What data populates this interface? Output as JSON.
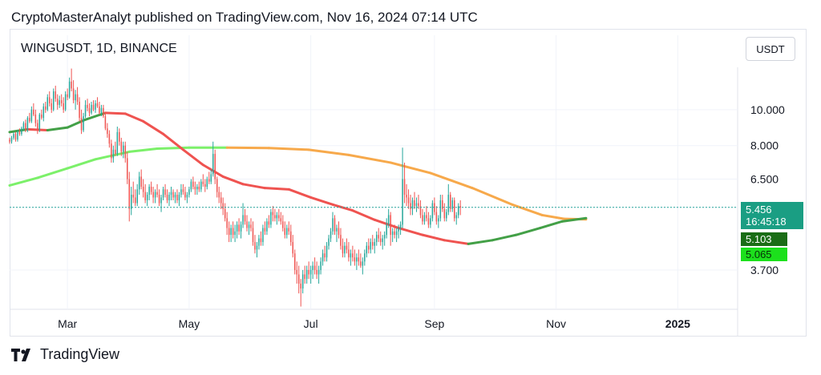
{
  "header": {
    "publish_line": "CryptoMasterAnalyt published on TradingView.com, Nov 16, 2024 07:14 UTC"
  },
  "symbol": {
    "label": "WINGUSDT, 1D, BINANCE"
  },
  "currency": {
    "label": "USDT"
  },
  "footer": {
    "brand": "TradingView"
  },
  "tags": {
    "last_price": "5.456",
    "countdown": "16:45:18",
    "ma_fast": "5.103",
    "ma_slow": "5.065"
  },
  "colors": {
    "up": "#26a69a",
    "down": "#ef5350",
    "ma_fast_above": "#43a047",
    "ma_fast_below": "#ef5350",
    "ma_slow_above": "#f7a94b",
    "ma_slow_below": "#7cf06a",
    "price_line": "#26a69a"
  },
  "chart_data": {
    "type": "candlestick",
    "log_scale": true,
    "y_ticks": [
      "10.000",
      "8.000",
      "6.500",
      "5.456",
      "3.700"
    ],
    "x_ticks": [
      "Mar",
      "May",
      "Jul",
      "Sep",
      "Nov",
      "2025"
    ],
    "x_range": [
      "2024-02-01",
      "2025-01-31"
    ],
    "y_range": [
      2.9,
      13.0
    ],
    "last_price": 5.456,
    "candles_start": "2024-02-01",
    "candles": [
      [
        8.3,
        8.4,
        8.1,
        8.2
      ],
      [
        8.2,
        8.5,
        8.1,
        8.4
      ],
      [
        8.4,
        8.7,
        8.3,
        8.6
      ],
      [
        8.6,
        8.7,
        8.2,
        8.3
      ],
      [
        8.3,
        8.8,
        8.2,
        8.7
      ],
      [
        8.7,
        8.9,
        8.5,
        8.6
      ],
      [
        8.6,
        9.0,
        8.5,
        8.9
      ],
      [
        8.9,
        9.3,
        8.8,
        9.2
      ],
      [
        9.2,
        9.4,
        8.7,
        8.8
      ],
      [
        8.8,
        9.6,
        8.7,
        9.5
      ],
      [
        9.5,
        9.8,
        9.2,
        9.3
      ],
      [
        9.3,
        10.2,
        9.2,
        10.0
      ],
      [
        10.0,
        10.4,
        9.6,
        9.7
      ],
      [
        9.7,
        10.0,
        9.0,
        9.2
      ],
      [
        9.2,
        9.4,
        8.6,
        8.8
      ],
      [
        8.8,
        9.8,
        8.7,
        9.7
      ],
      [
        9.7,
        10.0,
        9.4,
        9.5
      ],
      [
        9.5,
        10.4,
        9.3,
        10.2
      ],
      [
        10.2,
        10.5,
        9.8,
        10.0
      ],
      [
        10.0,
        11.0,
        9.9,
        10.8
      ],
      [
        10.8,
        11.2,
        10.2,
        10.4
      ],
      [
        10.4,
        10.7,
        9.8,
        10.0
      ],
      [
        10.0,
        11.4,
        9.9,
        11.2
      ],
      [
        11.2,
        11.6,
        10.5,
        10.7
      ],
      [
        10.7,
        11.0,
        10.0,
        10.3
      ],
      [
        10.3,
        10.9,
        10.1,
        10.6
      ],
      [
        10.6,
        11.0,
        10.2,
        10.4
      ],
      [
        10.4,
        10.8,
        9.8,
        10.0
      ],
      [
        10.0,
        11.2,
        9.9,
        11.0
      ],
      [
        11.0,
        11.4,
        10.6,
        10.8
      ],
      [
        10.8,
        12.2,
        10.7,
        11.9
      ],
      [
        11.9,
        12.9,
        11.2,
        11.4
      ],
      [
        11.4,
        12.0,
        10.4,
        10.6
      ],
      [
        10.6,
        11.3,
        10.0,
        11.0
      ],
      [
        11.0,
        11.5,
        10.3,
        10.5
      ],
      [
        10.5,
        10.8,
        9.3,
        9.5
      ],
      [
        9.5,
        10.0,
        8.6,
        8.8
      ],
      [
        8.8,
        9.8,
        8.7,
        9.6
      ],
      [
        9.6,
        10.6,
        9.5,
        10.3
      ],
      [
        10.3,
        10.7,
        9.9,
        10.1
      ],
      [
        10.1,
        10.4,
        9.6,
        9.8
      ],
      [
        9.8,
        10.5,
        9.7,
        10.3
      ],
      [
        10.3,
        10.6,
        9.9,
        10.0
      ],
      [
        10.0,
        10.6,
        9.8,
        10.4
      ],
      [
        10.4,
        10.8,
        10.1,
        10.2
      ],
      [
        10.2,
        10.5,
        9.7,
        9.8
      ],
      [
        9.8,
        10.3,
        9.6,
        10.1
      ],
      [
        10.1,
        10.3,
        9.5,
        9.6
      ],
      [
        9.6,
        9.8,
        8.8,
        8.9
      ],
      [
        8.9,
        9.2,
        8.4,
        8.6
      ],
      [
        8.6,
        8.8,
        7.9,
        8.1
      ],
      [
        8.1,
        8.3,
        7.2,
        7.4
      ],
      [
        7.4,
        8.0,
        7.2,
        7.8
      ],
      [
        7.8,
        8.2,
        7.5,
        7.6
      ],
      [
        7.6,
        9.0,
        7.5,
        8.7
      ],
      [
        8.7,
        8.9,
        8.0,
        8.2
      ],
      [
        8.2,
        8.4,
        7.5,
        7.7
      ],
      [
        7.7,
        8.2,
        7.4,
        8.0
      ],
      [
        8.0,
        8.2,
        7.2,
        7.4
      ],
      [
        7.4,
        7.7,
        6.3,
        6.5
      ],
      [
        6.5,
        6.8,
        5.0,
        5.4
      ],
      [
        5.4,
        6.2,
        5.2,
        5.9
      ],
      [
        5.9,
        6.4,
        5.6,
        5.8
      ],
      [
        5.8,
        6.1,
        5.5,
        5.6
      ],
      [
        5.6,
        6.3,
        5.5,
        6.1
      ],
      [
        6.1,
        6.8,
        5.9,
        6.6
      ],
      [
        6.6,
        6.9,
        6.1,
        6.2
      ],
      [
        6.2,
        6.5,
        5.8,
        6.0
      ],
      [
        6.0,
        6.3,
        5.6,
        5.7
      ],
      [
        5.7,
        6.0,
        5.5,
        5.9
      ],
      [
        5.9,
        6.3,
        5.7,
        6.2
      ],
      [
        6.2,
        6.4,
        5.9,
        6.0
      ],
      [
        6.0,
        6.2,
        5.6,
        5.8
      ],
      [
        5.8,
        6.1,
        5.6,
        6.0
      ],
      [
        6.0,
        6.3,
        5.8,
        5.9
      ],
      [
        5.9,
        6.1,
        5.5,
        5.6
      ],
      [
        5.6,
        5.9,
        5.3,
        5.8
      ],
      [
        5.8,
        6.2,
        5.7,
        6.1
      ],
      [
        6.1,
        6.3,
        5.8,
        5.9
      ],
      [
        5.9,
        6.1,
        5.6,
        5.7
      ],
      [
        5.7,
        6.0,
        5.5,
        5.9
      ],
      [
        5.9,
        6.2,
        5.7,
        6.0
      ],
      [
        6.0,
        6.1,
        5.7,
        5.8
      ],
      [
        5.8,
        6.0,
        5.6,
        5.9
      ],
      [
        5.9,
        6.1,
        5.6,
        5.7
      ],
      [
        5.7,
        6.0,
        5.5,
        5.9
      ],
      [
        5.9,
        6.3,
        5.8,
        6.1
      ],
      [
        6.1,
        6.3,
        5.9,
        6.0
      ],
      [
        6.0,
        6.2,
        5.7,
        5.8
      ],
      [
        5.8,
        6.0,
        5.6,
        5.9
      ],
      [
        5.9,
        6.2,
        5.8,
        6.1
      ],
      [
        6.1,
        6.5,
        6.0,
        6.4
      ],
      [
        6.4,
        6.6,
        6.1,
        6.2
      ],
      [
        6.2,
        6.4,
        5.9,
        6.1
      ],
      [
        6.1,
        6.3,
        5.9,
        6.2
      ],
      [
        6.2,
        6.4,
        6.0,
        6.1
      ],
      [
        6.1,
        6.5,
        6.0,
        6.4
      ],
      [
        6.4,
        6.7,
        6.2,
        6.3
      ],
      [
        6.3,
        6.5,
        6.0,
        6.2
      ],
      [
        6.2,
        6.6,
        6.1,
        6.5
      ],
      [
        6.5,
        6.8,
        6.3,
        6.4
      ],
      [
        6.4,
        6.9,
        6.3,
        6.7
      ],
      [
        6.7,
        8.2,
        6.6,
        7.6
      ],
      [
        7.6,
        7.8,
        6.3,
        6.5
      ],
      [
        6.5,
        6.6,
        5.8,
        6.0
      ],
      [
        6.0,
        6.2,
        5.6,
        5.8
      ],
      [
        5.8,
        6.0,
        5.4,
        5.6
      ],
      [
        5.6,
        5.8,
        5.2,
        5.4
      ],
      [
        5.4,
        5.6,
        5.0,
        5.1
      ],
      [
        5.1,
        5.3,
        4.6,
        4.8
      ],
      [
        4.8,
        5.0,
        4.4,
        4.6
      ],
      [
        4.6,
        4.9,
        4.4,
        4.8
      ],
      [
        4.8,
        5.0,
        4.5,
        4.6
      ],
      [
        4.6,
        4.9,
        4.4,
        4.7
      ],
      [
        4.7,
        5.0,
        4.5,
        4.9
      ],
      [
        4.9,
        5.1,
        4.6,
        4.7
      ],
      [
        4.7,
        5.0,
        4.5,
        4.9
      ],
      [
        4.9,
        5.6,
        4.8,
        5.2
      ],
      [
        5.2,
        5.4,
        4.9,
        5.0
      ],
      [
        5.0,
        5.2,
        4.7,
        4.8
      ],
      [
        4.8,
        5.0,
        4.6,
        4.9
      ],
      [
        4.9,
        5.1,
        4.7,
        4.8
      ],
      [
        4.8,
        5.0,
        4.3,
        4.4
      ],
      [
        4.4,
        4.6,
        4.1,
        4.2
      ],
      [
        4.2,
        4.4,
        4.0,
        4.3
      ],
      [
        4.3,
        4.6,
        4.2,
        4.5
      ],
      [
        4.5,
        4.7,
        4.3,
        4.4
      ],
      [
        4.4,
        4.9,
        4.3,
        4.8
      ],
      [
        4.8,
        5.0,
        4.6,
        4.7
      ],
      [
        4.7,
        5.1,
        4.6,
        5.0
      ],
      [
        5.0,
        5.2,
        4.8,
        4.9
      ],
      [
        4.9,
        5.4,
        4.8,
        5.3
      ],
      [
        5.3,
        5.5,
        5.0,
        5.2
      ],
      [
        5.2,
        5.4,
        5.0,
        5.1
      ],
      [
        5.1,
        5.3,
        4.9,
        5.2
      ],
      [
        5.2,
        5.4,
        5.0,
        5.1
      ],
      [
        5.1,
        5.3,
        4.9,
        5.0
      ],
      [
        5.0,
        5.2,
        4.7,
        4.8
      ],
      [
        4.8,
        5.0,
        4.5,
        4.6
      ],
      [
        4.6,
        4.9,
        4.5,
        4.8
      ],
      [
        4.8,
        5.0,
        4.6,
        4.7
      ],
      [
        4.7,
        4.9,
        4.3,
        4.4
      ],
      [
        4.4,
        4.6,
        4.0,
        4.1
      ],
      [
        4.1,
        4.2,
        3.6,
        3.7
      ],
      [
        3.7,
        3.9,
        3.4,
        3.6
      ],
      [
        3.6,
        3.8,
        3.2,
        3.4
      ],
      [
        3.4,
        3.5,
        2.95,
        3.3
      ],
      [
        3.3,
        3.7,
        3.2,
        3.6
      ],
      [
        3.6,
        3.8,
        3.4,
        3.5
      ],
      [
        3.5,
        3.8,
        3.4,
        3.7
      ],
      [
        3.7,
        3.9,
        3.5,
        3.6
      ],
      [
        3.6,
        3.8,
        3.4,
        3.7
      ],
      [
        3.7,
        3.9,
        3.5,
        3.8
      ],
      [
        3.8,
        4.0,
        3.6,
        3.7
      ],
      [
        3.7,
        3.9,
        3.5,
        3.6
      ],
      [
        3.6,
        3.8,
        3.4,
        3.7
      ],
      [
        3.7,
        4.0,
        3.6,
        3.9
      ],
      [
        3.9,
        4.2,
        3.8,
        4.1
      ],
      [
        4.1,
        4.3,
        3.9,
        4.0
      ],
      [
        4.0,
        4.4,
        3.9,
        4.3
      ],
      [
        4.3,
        4.6,
        4.2,
        4.5
      ],
      [
        4.5,
        4.8,
        4.4,
        4.7
      ],
      [
        4.7,
        5.3,
        4.6,
        5.1
      ],
      [
        5.1,
        5.2,
        4.6,
        4.7
      ],
      [
        4.7,
        4.9,
        4.4,
        4.8
      ],
      [
        4.8,
        5.0,
        4.5,
        4.6
      ],
      [
        4.6,
        4.8,
        4.2,
        4.3
      ],
      [
        4.3,
        4.5,
        4.0,
        4.1
      ],
      [
        4.1,
        4.4,
        4.0,
        4.3
      ],
      [
        4.3,
        4.5,
        4.1,
        4.2
      ],
      [
        4.2,
        4.4,
        3.9,
        4.0
      ],
      [
        4.0,
        4.2,
        3.8,
        4.1
      ],
      [
        4.1,
        4.3,
        3.9,
        4.0
      ],
      [
        4.0,
        4.2,
        3.8,
        3.9
      ],
      [
        3.9,
        4.1,
        3.7,
        4.0
      ],
      [
        4.0,
        4.2,
        3.8,
        3.9
      ],
      [
        3.9,
        4.1,
        3.75,
        3.8
      ],
      [
        3.8,
        4.0,
        3.6,
        3.9
      ],
      [
        3.9,
        4.2,
        3.8,
        4.1
      ],
      [
        4.1,
        4.4,
        4.0,
        4.3
      ],
      [
        4.3,
        4.5,
        4.1,
        4.2
      ],
      [
        4.2,
        4.5,
        4.1,
        4.4
      ],
      [
        4.4,
        4.6,
        4.2,
        4.3
      ],
      [
        4.3,
        4.5,
        4.1,
        4.4
      ],
      [
        4.4,
        4.7,
        4.3,
        4.6
      ],
      [
        4.6,
        4.8,
        4.4,
        4.5
      ],
      [
        4.5,
        4.7,
        4.3,
        4.4
      ],
      [
        4.4,
        4.6,
        4.2,
        4.5
      ],
      [
        4.5,
        4.7,
        4.3,
        4.6
      ],
      [
        4.6,
        5.1,
        4.5,
        4.9
      ],
      [
        4.9,
        5.4,
        4.8,
        5.2
      ],
      [
        5.2,
        5.3,
        4.3,
        4.6
      ],
      [
        4.6,
        4.8,
        4.4,
        4.7
      ],
      [
        4.7,
        4.9,
        4.5,
        4.6
      ],
      [
        4.6,
        4.8,
        4.4,
        4.7
      ],
      [
        4.7,
        4.9,
        4.5,
        4.8
      ],
      [
        4.8,
        5.0,
        4.6,
        4.9
      ],
      [
        4.9,
        7.9,
        4.8,
        6.5
      ],
      [
        6.5,
        7.2,
        5.6,
        5.9
      ],
      [
        5.9,
        6.3,
        5.5,
        5.8
      ],
      [
        5.8,
        6.1,
        5.4,
        5.6
      ],
      [
        5.6,
        5.9,
        5.2,
        5.4
      ],
      [
        5.4,
        5.8,
        5.2,
        5.7
      ],
      [
        5.7,
        6.0,
        5.4,
        5.5
      ],
      [
        5.5,
        5.8,
        5.3,
        5.6
      ],
      [
        5.6,
        5.9,
        5.4,
        5.5
      ],
      [
        5.5,
        5.7,
        5.1,
        5.2
      ],
      [
        5.2,
        5.4,
        4.9,
        5.0
      ],
      [
        5.0,
        5.3,
        4.9,
        5.2
      ],
      [
        5.2,
        5.5,
        5.0,
        5.1
      ],
      [
        5.1,
        5.3,
        4.8,
        4.9
      ],
      [
        4.9,
        5.2,
        4.8,
        5.1
      ],
      [
        5.1,
        5.7,
        5.0,
        5.6
      ],
      [
        5.6,
        5.8,
        5.2,
        5.3
      ],
      [
        5.3,
        5.5,
        4.9,
        5.0
      ],
      [
        5.0,
        5.2,
        4.8,
        5.1
      ],
      [
        5.1,
        5.9,
        5.0,
        5.7
      ],
      [
        5.7,
        5.9,
        5.3,
        5.4
      ],
      [
        5.4,
        5.6,
        5.0,
        5.1
      ],
      [
        5.1,
        5.4,
        5.0,
        5.3
      ],
      [
        5.3,
        6.3,
        5.2,
        5.9
      ],
      [
        5.9,
        6.0,
        5.3,
        5.4
      ],
      [
        5.4,
        5.8,
        5.3,
        5.7
      ],
      [
        5.7,
        5.8,
        5.0,
        5.1
      ],
      [
        5.1,
        5.3,
        4.9,
        5.2
      ],
      [
        5.2,
        5.6,
        5.1,
        5.5
      ],
      [
        5.5,
        5.7,
        5.2,
        5.456
      ]
    ],
    "ma_fast": [
      [
        "2024-02-01",
        8.7
      ],
      [
        "2024-02-10",
        8.85
      ],
      [
        "2024-02-20",
        8.8
      ],
      [
        "2024-03-01",
        8.95
      ],
      [
        "2024-03-10",
        9.4
      ],
      [
        "2024-03-20",
        9.8
      ],
      [
        "2024-03-30",
        9.75
      ],
      [
        "2024-04-08",
        9.3
      ],
      [
        "2024-04-18",
        8.6
      ],
      [
        "2024-04-28",
        7.8
      ],
      [
        "2024-05-08",
        7.1
      ],
      [
        "2024-05-18",
        6.6
      ],
      [
        "2024-05-28",
        6.3
      ],
      [
        "2024-06-08",
        6.15
      ],
      [
        "2024-06-20",
        6.1
      ],
      [
        "2024-07-01",
        5.8
      ],
      [
        "2024-07-12",
        5.55
      ],
      [
        "2024-07-22",
        5.35
      ],
      [
        "2024-08-02",
        5.05
      ],
      [
        "2024-08-14",
        4.8
      ],
      [
        "2024-08-26",
        4.6
      ],
      [
        "2024-09-06",
        4.45
      ],
      [
        "2024-09-18",
        4.35
      ],
      [
        "2024-09-30",
        4.45
      ],
      [
        "2024-10-12",
        4.6
      ],
      [
        "2024-10-24",
        4.8
      ],
      [
        "2024-11-04",
        5.0
      ],
      [
        "2024-11-16",
        5.103
      ]
    ],
    "ma_slow": [
      [
        "2024-02-01",
        6.25
      ],
      [
        "2024-02-15",
        6.55
      ],
      [
        "2024-03-01",
        6.95
      ],
      [
        "2024-03-15",
        7.35
      ],
      [
        "2024-04-01",
        7.7
      ],
      [
        "2024-04-15",
        7.85
      ],
      [
        "2024-05-01",
        7.9
      ],
      [
        "2024-05-20",
        7.9
      ],
      [
        "2024-06-10",
        7.88
      ],
      [
        "2024-06-30",
        7.8
      ],
      [
        "2024-07-20",
        7.55
      ],
      [
        "2024-08-10",
        7.2
      ],
      [
        "2024-08-30",
        6.75
      ],
      [
        "2024-09-20",
        6.15
      ],
      [
        "2024-10-10",
        5.55
      ],
      [
        "2024-10-25",
        5.2
      ],
      [
        "2024-11-05",
        5.08
      ],
      [
        "2024-11-16",
        5.065
      ]
    ]
  }
}
